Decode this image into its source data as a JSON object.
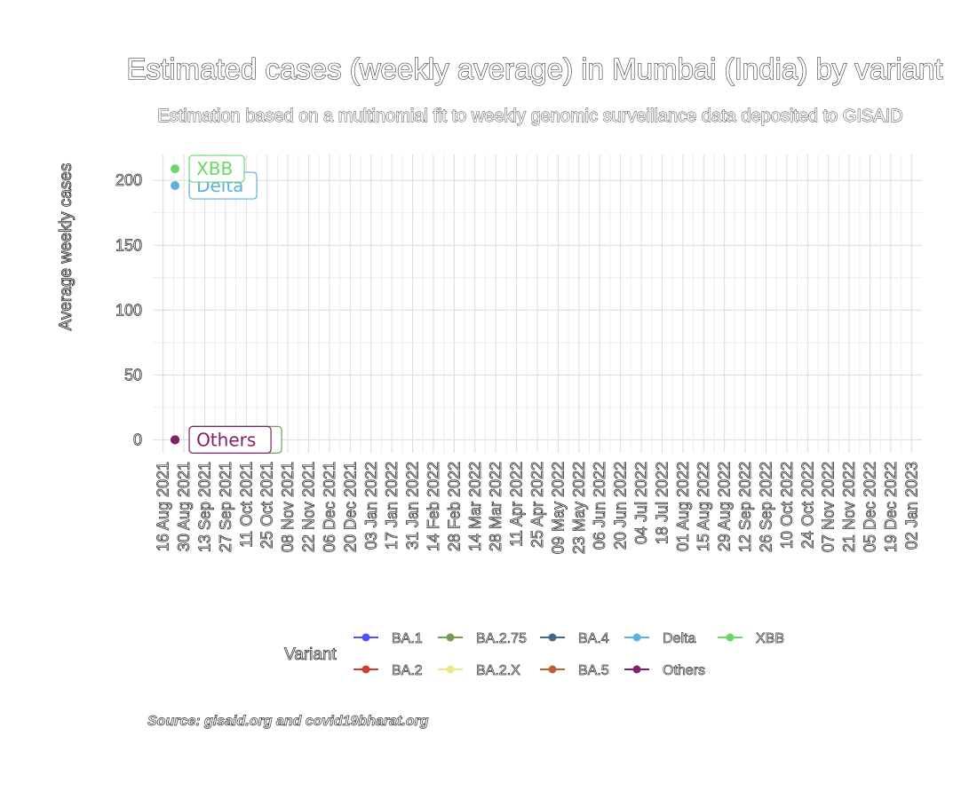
{
  "chart_data": {
    "type": "line",
    "title": "Estimated cases (weekly average) in Mumbai (India) by variant",
    "subtitle": "Estimation based on a multinomial fit to weekly genomic surveillance data deposited to GISAID",
    "xlabel": "",
    "ylabel": "Average weekly cases",
    "caption": "Source: gisaid.org and covid19bharat.org",
    "ylim": [
      -10,
      220
    ],
    "yticks": [
      0,
      50,
      100,
      150,
      200
    ],
    "x_range": [
      "2021-08-09",
      "2023-01-09"
    ],
    "x_ticks": [
      "2021-08-16",
      "2021-08-30",
      "2021-09-13",
      "2021-09-27",
      "2021-10-11",
      "2021-10-25",
      "2021-11-08",
      "2021-11-22",
      "2021-12-06",
      "2021-12-20",
      "2022-01-03",
      "2022-01-17",
      "2022-01-31",
      "2022-02-14",
      "2022-02-28",
      "2022-03-14",
      "2022-03-28",
      "2022-04-11",
      "2022-04-25",
      "2022-05-09",
      "2022-05-23",
      "2022-06-06",
      "2022-06-20",
      "2022-07-04",
      "2022-07-18",
      "2022-08-01",
      "2022-08-15",
      "2022-08-29",
      "2022-09-12",
      "2022-09-26",
      "2022-10-10",
      "2022-10-24",
      "2022-11-07",
      "2022-11-21",
      "2022-12-05",
      "2022-12-19",
      "2023-01-02"
    ],
    "x_tick_labels": [
      "16 Aug 2021",
      "30 Aug 2021",
      "13 Sep 2021",
      "27 Sep 2021",
      "11 Oct 2021",
      "25 Oct 2021",
      "08 Nov 2021",
      "22 Nov 2021",
      "06 Dec 2021",
      "20 Dec 2021",
      "03 Jan 2022",
      "17 Jan 2022",
      "31 Jan 2022",
      "14 Feb 2022",
      "28 Feb 2022",
      "14 Mar 2022",
      "28 Mar 2022",
      "11 Apr 2022",
      "25 Apr 2022",
      "09 May 2022",
      "23 May 2022",
      "06 Jun 2022",
      "20 Jun 2022",
      "04 Jul 2022",
      "18 Jul 2022",
      "01 Aug 2022",
      "15 Aug 2022",
      "29 Aug 2022",
      "12 Sep 2022",
      "26 Sep 2022",
      "10 Oct 2022",
      "24 Oct 2022",
      "07 Nov 2022",
      "21 Nov 2022",
      "05 Dec 2022",
      "19 Dec 2022",
      "02 Jan 2023"
    ],
    "grid": true,
    "legend_position": "bottom",
    "legend_title": "Variant",
    "series": [
      {
        "name": "BA.1",
        "color": "#5050ff",
        "points": [
          {
            "x": "2021-08-24",
            "y": 0
          }
        ]
      },
      {
        "name": "BA.2",
        "color": "#ce3d32",
        "points": [
          {
            "x": "2021-08-24",
            "y": 0
          }
        ]
      },
      {
        "name": "BA.2.75",
        "color": "#749b58",
        "points": [
          {
            "x": "2021-08-24",
            "y": 0
          }
        ],
        "point_label": "BA.2.75"
      },
      {
        "name": "BA.2.X",
        "color": "#f0e685",
        "points": [
          {
            "x": "2021-08-24",
            "y": 0
          }
        ]
      },
      {
        "name": "BA.4",
        "color": "#466983",
        "points": [
          {
            "x": "2021-08-24",
            "y": 0
          }
        ]
      },
      {
        "name": "BA.5",
        "color": "#ba6338",
        "points": [
          {
            "x": "2021-08-24",
            "y": 0
          }
        ]
      },
      {
        "name": "Delta",
        "color": "#5db1dd",
        "points": [
          {
            "x": "2021-08-24",
            "y": 196
          }
        ],
        "point_label": "Delta"
      },
      {
        "name": "Others",
        "color": "#802268",
        "points": [
          {
            "x": "2021-08-24",
            "y": 0
          }
        ],
        "point_label": "Others"
      },
      {
        "name": "XBB",
        "color": "#6bd76b",
        "points": [
          {
            "x": "2021-08-24",
            "y": 209
          }
        ],
        "point_label": "XBB"
      }
    ]
  }
}
